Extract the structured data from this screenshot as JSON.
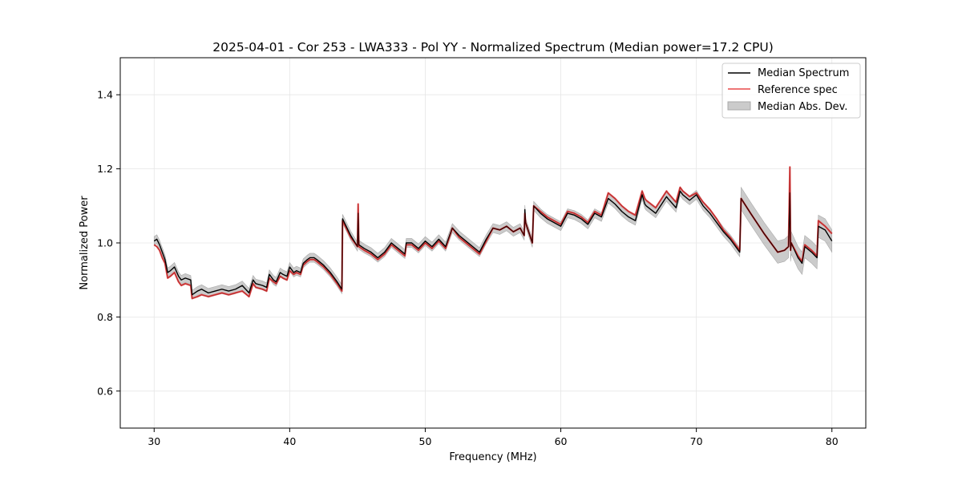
{
  "chart_data": {
    "type": "line",
    "title": "2025-04-01 - Cor 253 - LWA333 - Pol YY - Normalized Spectrum (Median power=17.2 CPU)",
    "xlabel": "Frequency (MHz)",
    "ylabel": "Normalized Power",
    "xlim": [
      27.5,
      82.5
    ],
    "ylim": [
      0.5,
      1.5
    ],
    "xticks": [
      30,
      40,
      50,
      60,
      70,
      80
    ],
    "yticks": [
      0.6,
      0.8,
      1.0,
      1.2,
      1.4
    ],
    "xtick_labels": [
      "30",
      "40",
      "50",
      "60",
      "70",
      "80"
    ],
    "ytick_labels": [
      "0.6",
      "0.8",
      "1.0",
      "1.2",
      "1.4"
    ],
    "grid": true,
    "legend_position": "top-right",
    "colors": {
      "median": "#000000",
      "reference": "#e8494a",
      "mad": "#a9a9a9",
      "grid": "#e6e6e6"
    },
    "series": [
      {
        "name": "Median Spectrum",
        "x": [
          30.0,
          30.2,
          30.4,
          30.6,
          30.8,
          31.0,
          31.2,
          31.5,
          31.8,
          32.0,
          32.3,
          32.7,
          32.8,
          33.2,
          33.5,
          34.0,
          34.5,
          35.0,
          35.5,
          36.0,
          36.5,
          37.0,
          37.3,
          37.5,
          38.0,
          38.3,
          38.5,
          38.8,
          39.0,
          39.3,
          39.5,
          39.8,
          40.0,
          40.3,
          40.5,
          40.8,
          41.0,
          41.3,
          41.5,
          41.8,
          42.0,
          42.5,
          43.0,
          43.5,
          43.85,
          43.9,
          44.5,
          45.0,
          45.05,
          45.1,
          45.5,
          46.0,
          46.5,
          47.0,
          47.5,
          48.0,
          48.5,
          48.6,
          49.0,
          49.5,
          50.0,
          50.5,
          51.0,
          51.5,
          52.0,
          52.5,
          53.0,
          53.5,
          54.0,
          54.5,
          55.0,
          55.5,
          56.0,
          56.5,
          57.0,
          57.3,
          57.35,
          57.4,
          57.9,
          58.0,
          58.5,
          59.0,
          59.5,
          60.0,
          60.5,
          61.0,
          61.5,
          62.0,
          62.5,
          63.0,
          63.5,
          64.0,
          64.5,
          65.0,
          65.5,
          66.0,
          66.2,
          66.3,
          67.0,
          67.8,
          67.9,
          68.5,
          68.8,
          69.0,
          69.5,
          70.0,
          70.5,
          71.0,
          71.5,
          72.0,
          72.5,
          73.2,
          73.3,
          74.0,
          75.0,
          76.0,
          76.5,
          76.8,
          76.9,
          76.95,
          77.0,
          77.5,
          77.8,
          78.0,
          78.5,
          78.9,
          79.0,
          79.5,
          80.0
        ],
        "values": [
          1.005,
          1.01,
          0.995,
          0.975,
          0.955,
          0.92,
          0.925,
          0.935,
          0.91,
          0.9,
          0.905,
          0.9,
          0.86,
          0.87,
          0.875,
          0.865,
          0.87,
          0.875,
          0.87,
          0.875,
          0.885,
          0.865,
          0.9,
          0.89,
          0.885,
          0.88,
          0.915,
          0.9,
          0.895,
          0.92,
          0.915,
          0.91,
          0.935,
          0.92,
          0.925,
          0.92,
          0.945,
          0.955,
          0.96,
          0.96,
          0.955,
          0.94,
          0.92,
          0.895,
          0.875,
          1.065,
          1.02,
          0.99,
          1.08,
          0.995,
          0.985,
          0.975,
          0.96,
          0.975,
          1.0,
          0.985,
          0.97,
          1.0,
          1.0,
          0.985,
          1.005,
          0.99,
          1.01,
          0.99,
          1.04,
          1.02,
          1.005,
          0.99,
          0.975,
          1.01,
          1.04,
          1.035,
          1.045,
          1.03,
          1.04,
          1.02,
          1.09,
          1.055,
          1.0,
          1.1,
          1.08,
          1.065,
          1.055,
          1.045,
          1.08,
          1.075,
          1.065,
          1.05,
          1.08,
          1.07,
          1.12,
          1.105,
          1.085,
          1.07,
          1.06,
          1.13,
          1.105,
          1.1,
          1.08,
          1.125,
          1.12,
          1.095,
          1.14,
          1.13,
          1.115,
          1.13,
          1.1,
          1.08,
          1.055,
          1.03,
          1.01,
          0.975,
          1.12,
          1.08,
          1.025,
          0.975,
          0.98,
          0.99,
          1.135,
          0.98,
          1.0,
          0.96,
          0.945,
          0.99,
          0.975,
          0.96,
          1.045,
          1.035,
          1.005
        ]
      },
      {
        "name": "Reference spec",
        "x": [
          30.0,
          30.2,
          30.4,
          30.6,
          30.8,
          31.0,
          31.2,
          31.5,
          31.8,
          32.0,
          32.3,
          32.7,
          32.8,
          33.2,
          33.5,
          34.0,
          34.5,
          35.0,
          35.5,
          36.0,
          36.5,
          37.0,
          37.3,
          37.5,
          38.0,
          38.3,
          38.5,
          38.8,
          39.0,
          39.3,
          39.5,
          39.8,
          40.0,
          40.3,
          40.5,
          40.8,
          41.0,
          41.3,
          41.5,
          41.8,
          42.0,
          42.5,
          43.0,
          43.5,
          43.85,
          43.9,
          44.5,
          45.0,
          45.05,
          45.1,
          45.5,
          46.0,
          46.5,
          47.0,
          47.5,
          48.0,
          48.5,
          48.6,
          49.0,
          49.5,
          50.0,
          50.5,
          51.0,
          51.5,
          52.0,
          52.5,
          53.0,
          53.5,
          54.0,
          54.5,
          55.0,
          55.5,
          56.0,
          56.5,
          57.0,
          57.3,
          57.35,
          57.4,
          57.9,
          58.0,
          58.5,
          59.0,
          59.5,
          60.0,
          60.5,
          61.0,
          61.5,
          62.0,
          62.5,
          63.0,
          63.5,
          64.0,
          64.5,
          65.0,
          65.5,
          66.0,
          66.2,
          66.3,
          67.0,
          67.8,
          67.9,
          68.5,
          68.8,
          69.0,
          69.5,
          70.0,
          70.5,
          71.0,
          71.5,
          72.0,
          72.5,
          73.2,
          73.3,
          74.0,
          75.0,
          76.0,
          76.5,
          76.8,
          76.9,
          76.95,
          77.0,
          77.5,
          77.8,
          78.0,
          78.5,
          78.9,
          79.0,
          79.5,
          80.0
        ],
        "values": [
          0.995,
          0.99,
          0.98,
          0.96,
          0.945,
          0.905,
          0.91,
          0.92,
          0.895,
          0.885,
          0.89,
          0.885,
          0.85,
          0.855,
          0.86,
          0.855,
          0.86,
          0.865,
          0.86,
          0.865,
          0.87,
          0.855,
          0.89,
          0.88,
          0.875,
          0.87,
          0.905,
          0.895,
          0.89,
          0.91,
          0.905,
          0.9,
          0.925,
          0.915,
          0.92,
          0.915,
          0.94,
          0.95,
          0.955,
          0.955,
          0.95,
          0.935,
          0.915,
          0.89,
          0.87,
          1.06,
          1.015,
          0.99,
          1.105,
          0.99,
          0.98,
          0.97,
          0.955,
          0.97,
          0.995,
          0.98,
          0.965,
          0.995,
          0.995,
          0.98,
          1.0,
          0.985,
          1.005,
          0.985,
          1.04,
          1.015,
          1.0,
          0.985,
          0.97,
          1.005,
          1.04,
          1.035,
          1.045,
          1.03,
          1.04,
          1.02,
          1.08,
          1.055,
          1.0,
          1.1,
          1.085,
          1.07,
          1.06,
          1.05,
          1.085,
          1.08,
          1.07,
          1.055,
          1.085,
          1.075,
          1.135,
          1.12,
          1.1,
          1.085,
          1.075,
          1.14,
          1.12,
          1.115,
          1.095,
          1.14,
          1.135,
          1.11,
          1.15,
          1.14,
          1.125,
          1.135,
          1.11,
          1.09,
          1.065,
          1.035,
          1.015,
          0.98,
          1.12,
          1.08,
          1.025,
          0.975,
          0.98,
          0.99,
          1.205,
          0.98,
          1.0,
          0.965,
          0.95,
          0.995,
          0.98,
          0.965,
          1.06,
          1.045,
          1.025
        ]
      }
    ],
    "band": {
      "name": "Median Abs. Dev.",
      "half_width": 0.012,
      "half_width_wide": 0.03,
      "wide_from": 73.3
    }
  }
}
